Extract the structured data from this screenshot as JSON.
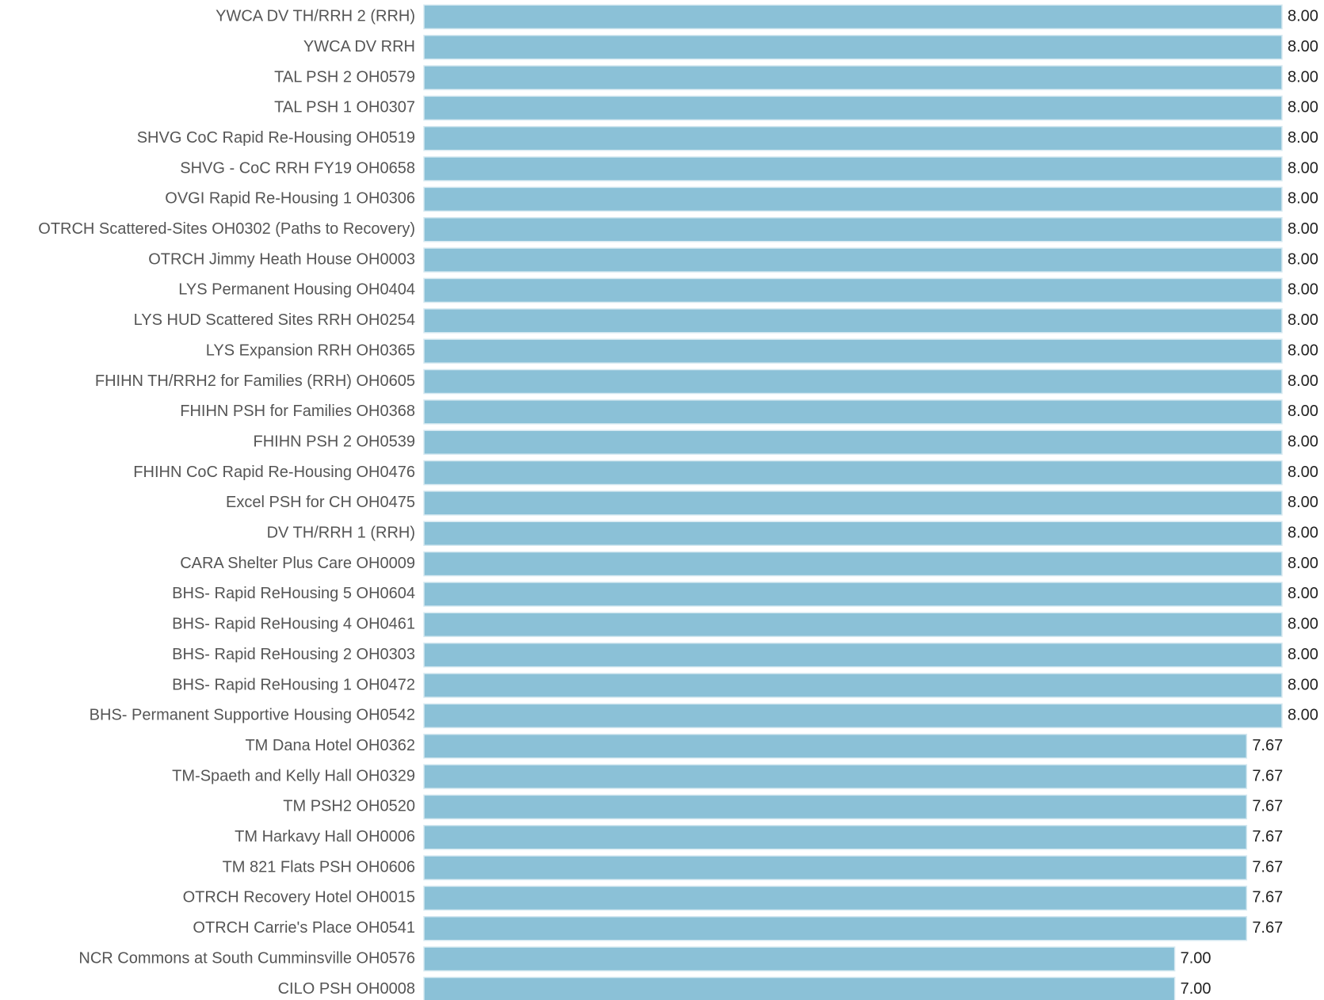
{
  "chart_data": {
    "type": "barh",
    "color": "#8bc1d7",
    "categories": [
      "YWCA DV TH/RRH 2 (RRH)",
      "YWCA DV RRH",
      "TAL PSH 2 OH0579",
      "TAL PSH 1 OH0307",
      "SHVG CoC Rapid Re-Housing OH0519",
      "SHVG - CoC RRH FY19 OH0658",
      "OVGI Rapid Re-Housing 1 OH0306",
      "OTRCH Scattered-Sites OH0302 (Paths to Recovery)",
      "OTRCH Jimmy Heath House OH0003",
      "LYS Permanent Housing OH0404",
      "LYS HUD Scattered Sites RRH OH0254",
      "LYS Expansion RRH OH0365",
      "FHIHN TH/RRH2 for Families (RRH) OH0605",
      "FHIHN PSH for Families OH0368",
      "FHIHN PSH 2 OH0539",
      "FHIHN CoC Rapid Re-Housing OH0476",
      "Excel PSH for CH OH0475",
      "DV TH/RRH 1 (RRH)",
      "CARA Shelter Plus Care OH0009",
      "BHS- Rapid ReHousing 5 OH0604",
      "BHS- Rapid ReHousing 4 OH0461",
      "BHS- Rapid ReHousing 2 OH0303",
      "BHS- Rapid ReHousing 1 OH0472",
      "BHS- Permanent Supportive Housing OH0542",
      "TM Dana Hotel OH0362",
      "TM-Spaeth and Kelly Hall OH0329",
      "TM PSH2 OH0520",
      "TM Harkavy Hall OH0006",
      "TM 821 Flats PSH OH0606",
      "OTRCH Recovery Hotel OH0015",
      "OTRCH Carrie's Place OH0541",
      "NCR Commons at South Cumminsville OH0576",
      "CILO PSH OH0008"
    ],
    "values": [
      8,
      8,
      8,
      8,
      8,
      8,
      8,
      8,
      8,
      8,
      8,
      8,
      8,
      8,
      8,
      8,
      8,
      8,
      8,
      8,
      8,
      8,
      8,
      8,
      7.67,
      7.67,
      7.67,
      7.67,
      7.67,
      7.67,
      7.67,
      7,
      7
    ],
    "value_labels": [
      "8.00",
      "8.00",
      "8.00",
      "8.00",
      "8.00",
      "8.00",
      "8.00",
      "8.00",
      "8.00",
      "8.00",
      "8.00",
      "8.00",
      "8.00",
      "8.00",
      "8.00",
      "8.00",
      "8.00",
      "8.00",
      "8.00",
      "8.00",
      "8.00",
      "8.00",
      "8.00",
      "8.00",
      "7.67",
      "7.67",
      "7.67",
      "7.67",
      "7.67",
      "7.67",
      "7.67",
      "7.00",
      "7.00"
    ]
  }
}
